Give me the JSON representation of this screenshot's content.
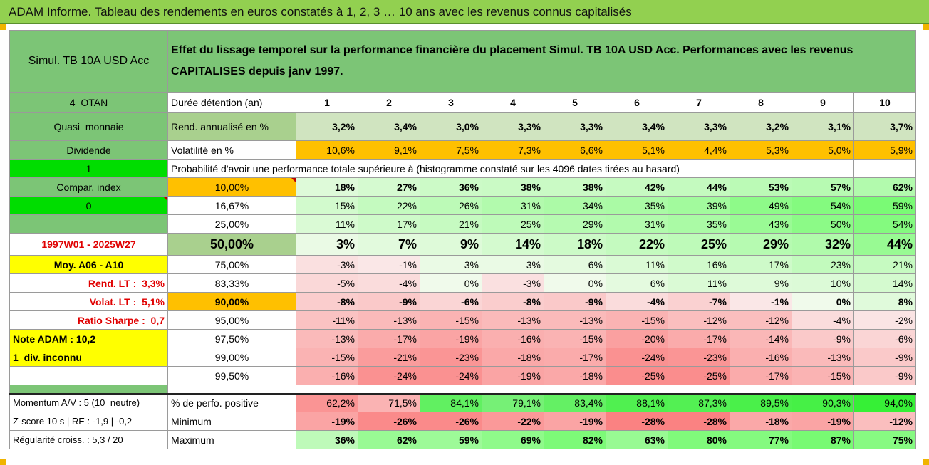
{
  "title": "ADAM Informe. Tableau des rendements en euros constatés à 1, 2, 3 … 10 ans avec les revenus connus capitalisés",
  "fund": "Simul. TB 10A USD Acc",
  "description": "Effet du lissage temporel sur la performance financière du placement Simul. TB 10A USD Acc. Performances avec les revenus CAPITALISES depuis janv 1997.",
  "left": {
    "otan": "4_OTAN",
    "quasi": "Quasi_monnaie",
    "dividende": "Dividende",
    "one": "1",
    "compar": "Compar. index",
    "zero": "0",
    "period": "1997W01 - 2025W27",
    "moy": "Moy. A06 - A10",
    "rend_lt_label": "Rend. LT :",
    "rend_lt_value": "3,3%",
    "volat_lt_label": "Volat. LT :",
    "volat_lt_value": "5,1%",
    "sharpe_label": "Ratio Sharpe :",
    "sharpe_value": "0,7",
    "note": "Note ADAM : 10,2",
    "div": "1_div. inconnu"
  },
  "header": {
    "label": "Durée détention (an)",
    "years": [
      "1",
      "2",
      "3",
      "4",
      "5",
      "6",
      "7",
      "8",
      "9",
      "10"
    ]
  },
  "rend": {
    "label": "Rend. annualisé en %",
    "values": [
      "3,2%",
      "3,4%",
      "3,0%",
      "3,3%",
      "3,3%",
      "3,4%",
      "3,3%",
      "3,2%",
      "3,1%",
      "3,7%"
    ]
  },
  "vol": {
    "label": "Volatilité en %",
    "values": [
      "10,6%",
      "9,1%",
      "7,5%",
      "7,3%",
      "6,6%",
      "5,1%",
      "4,4%",
      "5,3%",
      "5,0%",
      "5,9%"
    ]
  },
  "proba_text": "Probabilité d'avoir une performance totale supérieure à (histogramme constaté sur les 4096 dates tirées au hasard)",
  "thresholds": [
    {
      "label": "10,00%",
      "values": [
        "18%",
        "27%",
        "36%",
        "38%",
        "38%",
        "42%",
        "44%",
        "53%",
        "57%",
        "62%"
      ]
    },
    {
      "label": "16,67%",
      "values": [
        "15%",
        "22%",
        "26%",
        "31%",
        "34%",
        "35%",
        "39%",
        "49%",
        "54%",
        "59%"
      ]
    },
    {
      "label": "25,00%",
      "values": [
        "11%",
        "17%",
        "21%",
        "25%",
        "29%",
        "31%",
        "35%",
        "43%",
        "50%",
        "54%"
      ]
    },
    {
      "label": "50,00%",
      "values": [
        "3%",
        "7%",
        "9%",
        "14%",
        "18%",
        "22%",
        "25%",
        "29%",
        "32%",
        "44%"
      ]
    },
    {
      "label": "75,00%",
      "values": [
        "-3%",
        "-1%",
        "3%",
        "3%",
        "6%",
        "11%",
        "16%",
        "17%",
        "23%",
        "21%"
      ]
    },
    {
      "label": "83,33%",
      "values": [
        "-5%",
        "-4%",
        "0%",
        "-3%",
        "0%",
        "6%",
        "11%",
        "9%",
        "10%",
        "14%"
      ]
    },
    {
      "label": "90,00%",
      "values": [
        "-8%",
        "-9%",
        "-6%",
        "-8%",
        "-9%",
        "-4%",
        "-7%",
        "-1%",
        "0%",
        "8%"
      ]
    },
    {
      "label": "95,00%",
      "values": [
        "-11%",
        "-13%",
        "-15%",
        "-13%",
        "-13%",
        "-15%",
        "-12%",
        "-12%",
        "-4%",
        "-2%"
      ]
    },
    {
      "label": "97,50%",
      "values": [
        "-13%",
        "-17%",
        "-19%",
        "-16%",
        "-15%",
        "-20%",
        "-17%",
        "-14%",
        "-9%",
        "-6%"
      ]
    },
    {
      "label": "99,00%",
      "values": [
        "-15%",
        "-21%",
        "-23%",
        "-18%",
        "-17%",
        "-24%",
        "-23%",
        "-16%",
        "-13%",
        "-9%"
      ]
    },
    {
      "label": "99,50%",
      "values": [
        "-16%",
        "-24%",
        "-24%",
        "-19%",
        "-18%",
        "-25%",
        "-25%",
        "-17%",
        "-15%",
        "-9%"
      ]
    }
  ],
  "bottom": [
    {
      "left": "Momentum A/V : 5 (10=neutre)",
      "label": "% de perfo. positive",
      "values": [
        "62,2%",
        "71,5%",
        "84,1%",
        "79,1%",
        "83,4%",
        "88,1%",
        "87,3%",
        "89,5%",
        "90,3%",
        "94,0%"
      ]
    },
    {
      "left": "Z-score 10 s | RE : -1,9 | -0,2",
      "label": "Minimum",
      "values": [
        "-19%",
        "-26%",
        "-26%",
        "-22%",
        "-19%",
        "-28%",
        "-28%",
        "-18%",
        "-19%",
        "-12%"
      ]
    },
    {
      "left": "Régularité croiss. : 5,3 / 20",
      "label": "Maximum",
      "values": [
        "36%",
        "62%",
        "59%",
        "69%",
        "82%",
        "63%",
        "80%",
        "77%",
        "87%",
        "75%"
      ]
    }
  ],
  "colors": {
    "green_dark": "#7cc576",
    "green_bright": "#00dd00",
    "yellow": "#ffff00",
    "orange": "#ffc000",
    "negative_red": "#f08080",
    "positive_green": "#66dd66"
  }
}
